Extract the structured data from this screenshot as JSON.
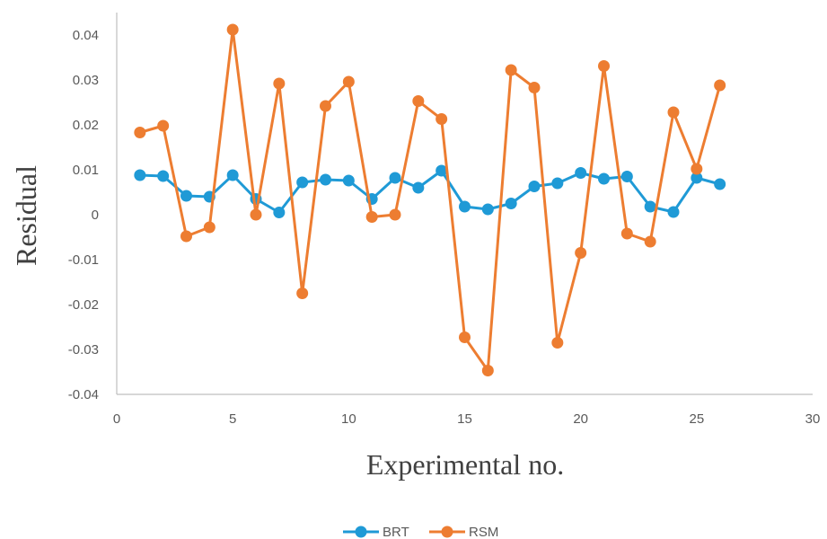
{
  "chart_data": {
    "type": "line",
    "title": "",
    "xlabel": "Experimental no.",
    "ylabel": "Residual",
    "xlim": [
      0,
      30
    ],
    "ylim": [
      -0.04,
      0.04
    ],
    "x_ticks": [
      0,
      5,
      10,
      15,
      20,
      25,
      30
    ],
    "x_tick_labels": [
      "0",
      "5",
      "10",
      "15",
      "20",
      "25",
      "30"
    ],
    "y_ticks": [
      0.04,
      0.03,
      0.02,
      0.01,
      0,
      -0.01,
      -0.02,
      -0.03,
      -0.04
    ],
    "y_tick_labels": [
      "0.04",
      "0.03",
      "0.02",
      "0.01",
      "0",
      "-0.01",
      "-0.02",
      "-0.03",
      "-0.04"
    ],
    "grid": false,
    "legend_position": "bottom",
    "x": [
      1,
      2,
      3,
      4,
      5,
      6,
      7,
      8,
      9,
      10,
      11,
      12,
      13,
      14,
      15,
      16,
      17,
      18,
      19,
      20,
      21,
      22,
      23,
      24,
      25,
      26
    ],
    "series": [
      {
        "name": "BRT",
        "color": "#1f9ad6",
        "values": [
          0.0088,
          0.0086,
          0.0042,
          0.004,
          0.0088,
          0.0035,
          0.0005,
          0.0072,
          0.0078,
          0.0076,
          0.0035,
          0.0082,
          0.006,
          0.0098,
          0.0018,
          0.0012,
          0.0025,
          0.0063,
          0.007,
          0.0093,
          0.008,
          0.0085,
          0.0018,
          0.0006,
          0.0082,
          0.0068
        ]
      },
      {
        "name": "RSM",
        "color": "#ed7d31",
        "values": [
          0.0183,
          0.0198,
          -0.0048,
          -0.0028,
          0.0412,
          0.0,
          0.0292,
          -0.0175,
          0.0242,
          0.0296,
          -0.0005,
          0.0,
          0.0253,
          0.0213,
          -0.0273,
          -0.0347,
          0.0322,
          0.0283,
          -0.0285,
          -0.0085,
          0.0331,
          -0.0042,
          -0.006,
          0.0228,
          0.0102,
          0.0288
        ]
      }
    ]
  }
}
